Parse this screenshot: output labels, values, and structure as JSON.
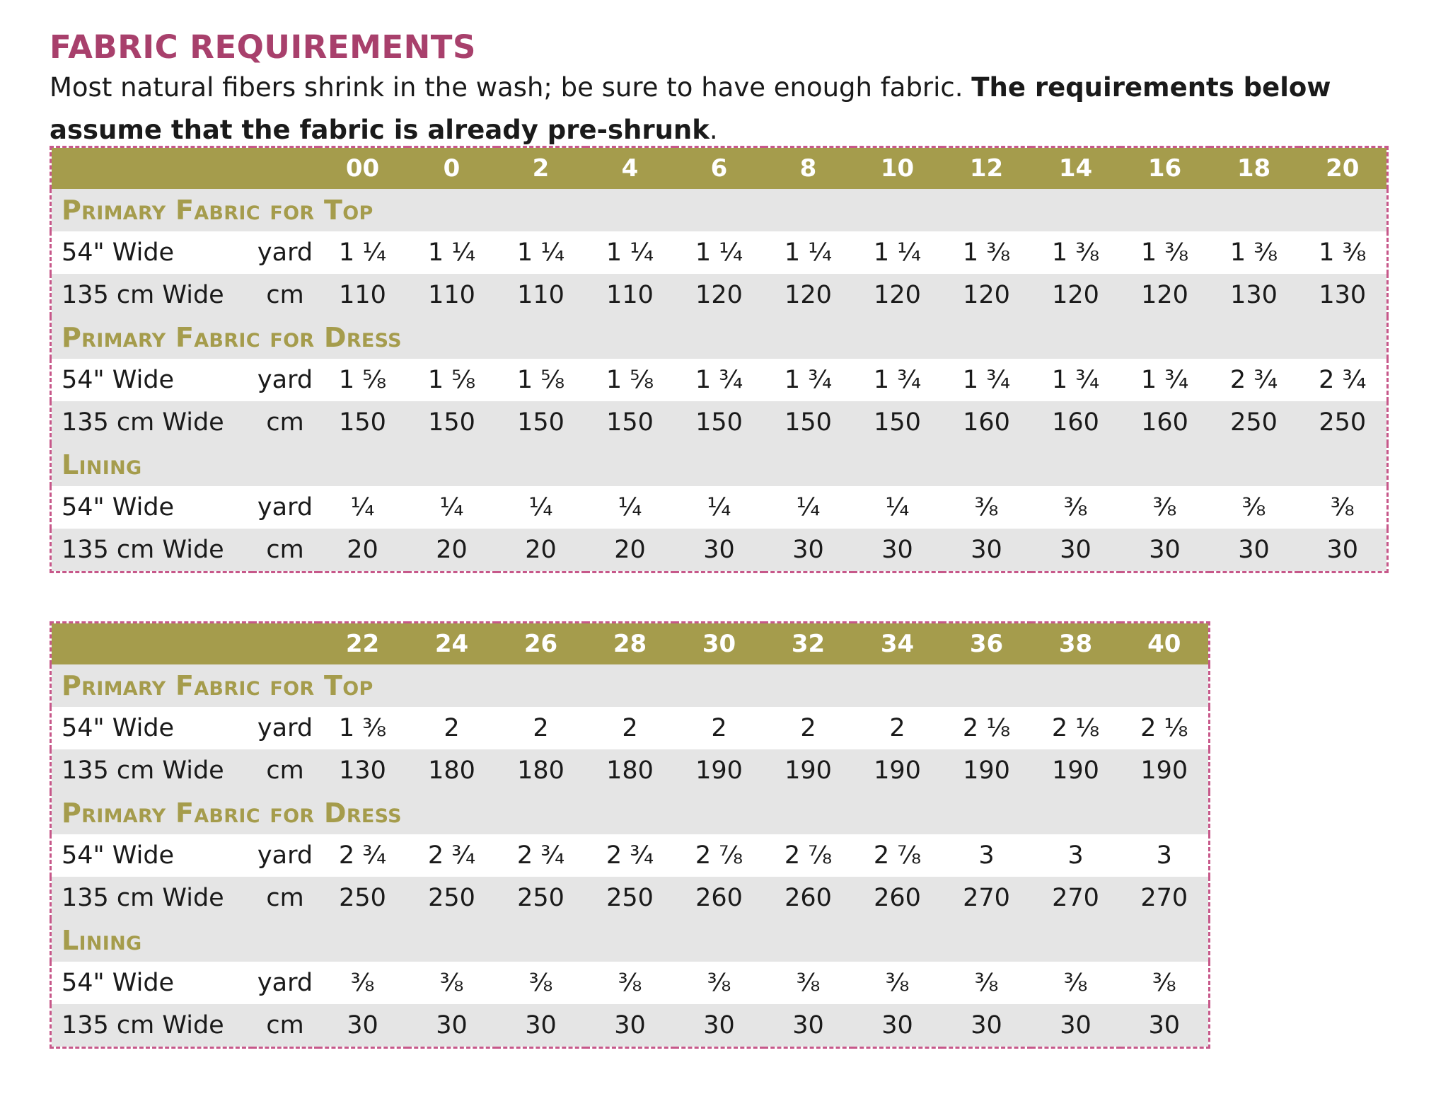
{
  "title": "FABRIC REQUIREMENTS",
  "intro": {
    "normal": "Most natural fibers shrink in the wash; be sure to have enough fabric. ",
    "bold": "The requirements below assume that the fabric is already pre-shrunk",
    "end": "."
  },
  "tables": [
    {
      "sizes": [
        "00",
        "0",
        "2",
        "4",
        "6",
        "8",
        "10",
        "12",
        "14",
        "16",
        "18",
        "20"
      ],
      "sections": [
        {
          "title": "Primary Fabric for Top",
          "rows": [
            {
              "desc": "54\" Wide",
              "unit": "yard",
              "values": [
                "1 ¼",
                "1 ¼",
                "1 ¼",
                "1 ¼",
                "1 ¼",
                "1 ¼",
                "1 ¼",
                "1 ⅜",
                "1 ⅜",
                "1 ⅜",
                "1 ⅜",
                "1 ⅜"
              ]
            },
            {
              "desc": "135 cm Wide",
              "unit": "cm",
              "values": [
                "110",
                "110",
                "110",
                "110",
                "120",
                "120",
                "120",
                "120",
                "120",
                "120",
                "130",
                "130"
              ]
            }
          ]
        },
        {
          "title": "Primary Fabric for Dress",
          "rows": [
            {
              "desc": "54\" Wide",
              "unit": "yard",
              "values": [
                "1 ⅝",
                "1 ⅝",
                "1 ⅝",
                "1 ⅝",
                "1 ¾",
                "1 ¾",
                "1 ¾",
                "1 ¾",
                "1 ¾",
                "1 ¾",
                "2 ¾",
                "2 ¾"
              ]
            },
            {
              "desc": "135 cm Wide",
              "unit": "cm",
              "values": [
                "150",
                "150",
                "150",
                "150",
                "150",
                "150",
                "150",
                "160",
                "160",
                "160",
                "250",
                "250"
              ]
            }
          ]
        },
        {
          "title": "Lining",
          "rows": [
            {
              "desc": "54\" Wide",
              "unit": "yard",
              "values": [
                "¼",
                "¼",
                "¼",
                "¼",
                "¼",
                "¼",
                "¼",
                "⅜",
                "⅜",
                "⅜",
                "⅜",
                "⅜"
              ]
            },
            {
              "desc": "135 cm Wide",
              "unit": "cm",
              "values": [
                "20",
                "20",
                "20",
                "20",
                "30",
                "30",
                "30",
                "30",
                "30",
                "30",
                "30",
                "30"
              ]
            }
          ]
        }
      ]
    },
    {
      "sizes": [
        "22",
        "24",
        "26",
        "28",
        "30",
        "32",
        "34",
        "36",
        "38",
        "40"
      ],
      "sections": [
        {
          "title": "Primary Fabric for Top",
          "rows": [
            {
              "desc": "54\" Wide",
              "unit": "yard",
              "values": [
                "1 ⅜",
                "2",
                "2",
                "2",
                "2",
                "2",
                "2",
                "2 ⅛",
                "2 ⅛",
                "2 ⅛"
              ]
            },
            {
              "desc": "135 cm Wide",
              "unit": "cm",
              "values": [
                "130",
                "180",
                "180",
                "180",
                "190",
                "190",
                "190",
                "190",
                "190",
                "190"
              ]
            }
          ]
        },
        {
          "title": "Primary Fabric for Dress",
          "rows": [
            {
              "desc": "54\" Wide",
              "unit": "yard",
              "values": [
                "2 ¾",
                "2 ¾",
                "2 ¾",
                "2 ¾",
                "2 ⅞",
                "2 ⅞",
                "2 ⅞",
                "3",
                "3",
                "3"
              ]
            },
            {
              "desc": "135 cm Wide",
              "unit": "cm",
              "values": [
                "250",
                "250",
                "250",
                "250",
                "260",
                "260",
                "260",
                "270",
                "270",
                "270"
              ]
            }
          ]
        },
        {
          "title": "Lining",
          "rows": [
            {
              "desc": "54\" Wide",
              "unit": "yard",
              "values": [
                "⅜",
                "⅜",
                "⅜",
                "⅜",
                "⅜",
                "⅜",
                "⅜",
                "⅜",
                "⅜",
                "⅜"
              ]
            },
            {
              "desc": "135 cm Wide",
              "unit": "cm",
              "values": [
                "30",
                "30",
                "30",
                "30",
                "30",
                "30",
                "30",
                "30",
                "30",
                "30"
              ]
            }
          ]
        }
      ]
    }
  ]
}
